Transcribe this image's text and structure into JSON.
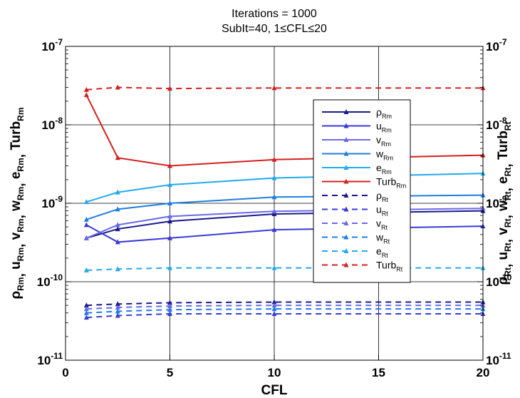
{
  "chart_data": {
    "type": "line",
    "title": "Iterations = 1000",
    "subtitle": "SubIt=40, 1≤CFL≤20",
    "xlabel": "CFL",
    "xlim": [
      0,
      20
    ],
    "xticks": [
      0,
      5,
      10,
      15,
      20
    ],
    "y_scale": "log",
    "ylim": [
      1e-11,
      1e-07
    ],
    "y_tick_exponents": [
      -11,
      -10,
      -9,
      -8,
      -7
    ],
    "y_tick_base": "10",
    "ylabel_left": {
      "parts": [
        {
          "main": "ρ",
          "sub": "Rm"
        },
        {
          "main": "u",
          "sub": "Rm"
        },
        {
          "main": "v",
          "sub": "Rm"
        },
        {
          "main": "w",
          "sub": "Rm"
        },
        {
          "main": "e",
          "sub": "Rm"
        },
        {
          "main": "Turb",
          "sub": "Rm"
        }
      ]
    },
    "ylabel_right": {
      "parts": [
        {
          "main": "ρ",
          "sub": "Rt"
        },
        {
          "main": "u",
          "sub": "Rt"
        },
        {
          "main": "v",
          "sub": "Rt"
        },
        {
          "main": "w",
          "sub": "Rt"
        },
        {
          "main": "e",
          "sub": "Rt"
        },
        {
          "main": "Turb",
          "sub": "Rt"
        }
      ]
    },
    "grid": true,
    "legend_position": "right",
    "series": [
      {
        "name": "ρ",
        "sub": "Rm",
        "color": "#1a1a8c",
        "dash": false,
        "x": [
          1,
          2.5,
          5,
          10,
          20
        ],
        "y": [
          3.6e-10,
          4.7e-10,
          5.9e-10,
          7.3e-10,
          8e-10
        ]
      },
      {
        "name": "u",
        "sub": "Rm",
        "color": "#3a3ad8",
        "dash": false,
        "x": [
          1,
          2.5,
          5,
          10,
          20
        ],
        "y": [
          5.3e-10,
          3.2e-10,
          3.6e-10,
          4.6e-10,
          5.1e-10
        ]
      },
      {
        "name": "v",
        "sub": "Rm",
        "color": "#6a6ae6",
        "dash": false,
        "x": [
          1,
          2.5,
          5,
          10,
          20
        ],
        "y": [
          3.6e-10,
          5.3e-10,
          6.8e-10,
          7.9e-10,
          8.6e-10
        ]
      },
      {
        "name": "w",
        "sub": "Rm",
        "color": "#1f7fe0",
        "dash": false,
        "x": [
          1,
          2.5,
          5,
          10,
          20
        ],
        "y": [
          6.2e-10,
          8.4e-10,
          1e-09,
          1.2e-09,
          1.27e-09
        ]
      },
      {
        "name": "e",
        "sub": "Rm",
        "color": "#22aaee",
        "dash": false,
        "x": [
          1,
          2.5,
          5,
          10,
          20
        ],
        "y": [
          1.04e-09,
          1.38e-09,
          1.72e-09,
          2.1e-09,
          2.4e-09
        ]
      },
      {
        "name": "Turb",
        "sub": "Rm",
        "color": "#d42020",
        "dash": false,
        "x": [
          1,
          2.5,
          5,
          10,
          20
        ],
        "y": [
          2.4e-08,
          3.8e-09,
          3e-09,
          3.6e-09,
          4.1e-09
        ]
      },
      {
        "name": "ρ",
        "sub": "Rt",
        "color": "#1a1a8c",
        "dash": true,
        "x": [
          1,
          2.5,
          5,
          10,
          20
        ],
        "y": [
          5e-11,
          5.2e-11,
          5.4e-11,
          5.5e-11,
          5.5e-11
        ]
      },
      {
        "name": "u",
        "sub": "Rt",
        "color": "#3a3ad8",
        "dash": true,
        "x": [
          1,
          2.5,
          5,
          10,
          20
        ],
        "y": [
          3.5e-11,
          3.7e-11,
          3.9e-11,
          3.9e-11,
          3.9e-11
        ]
      },
      {
        "name": "v",
        "sub": "Rt",
        "color": "#6a6ae6",
        "dash": true,
        "x": [
          1,
          2.5,
          5,
          10,
          20
        ],
        "y": [
          4.5e-11,
          4.7e-11,
          4.9e-11,
          5e-11,
          5e-11
        ]
      },
      {
        "name": "w",
        "sub": "Rt",
        "color": "#1f7fe0",
        "dash": true,
        "x": [
          1,
          2.5,
          5,
          10,
          20
        ],
        "y": [
          4e-11,
          4.2e-11,
          4.4e-11,
          4.5e-11,
          4.5e-11
        ]
      },
      {
        "name": "e",
        "sub": "Rt",
        "color": "#22aaee",
        "dash": true,
        "x": [
          1,
          2.5,
          5,
          10,
          20
        ],
        "y": [
          1.4e-10,
          1.45e-10,
          1.5e-10,
          1.5e-10,
          1.5e-10
        ]
      },
      {
        "name": "Turb",
        "sub": "Rt",
        "color": "#d42020",
        "dash": true,
        "x": [
          1,
          2.5,
          5,
          10,
          20
        ],
        "y": [
          2.8e-08,
          3e-08,
          2.9e-08,
          2.95e-08,
          2.95e-08
        ]
      }
    ]
  }
}
